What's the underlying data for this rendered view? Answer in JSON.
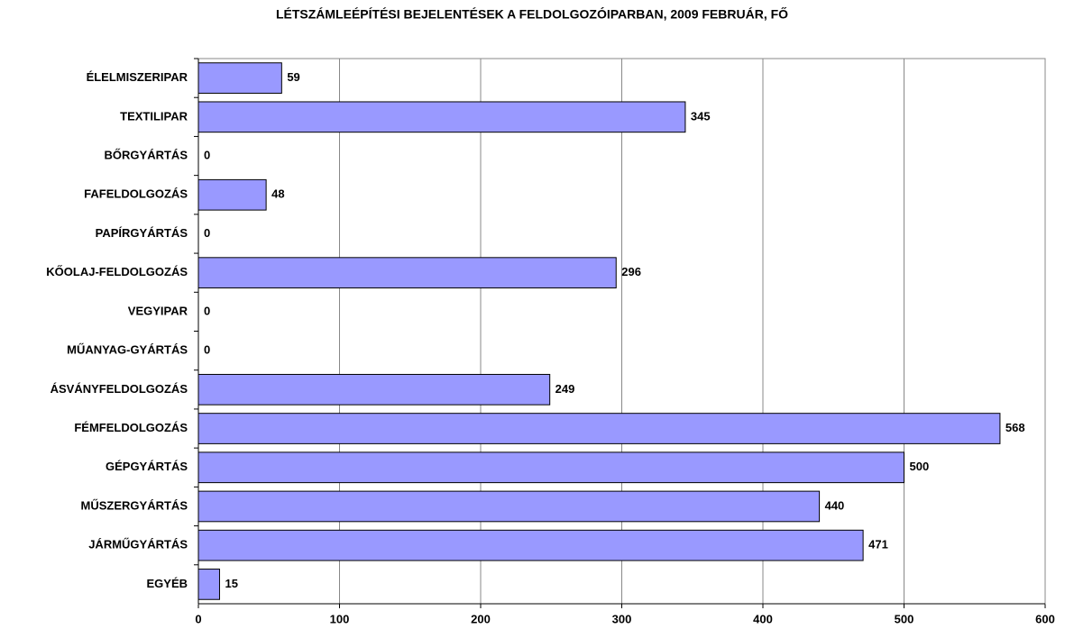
{
  "chart_data": {
    "type": "bar",
    "orientation": "horizontal",
    "title": "LÉTSZÁMLEÉPÍTÉSI BEJELENTÉSEK A FELDOLGOZÓIPARBAN, 2009 FEBRUÁR, FŐ",
    "categories": [
      "ÉLELMISZERIPAR",
      "TEXTILIPAR",
      "BŐRGYÁRTÁS",
      "FAFELDOLGOZÁS",
      "PAPÍRGYÁRTÁS",
      "KŐOLAJ-FELDOLGOZÁS",
      "VEGYIPAR",
      "MŰANYAG-GYÁRTÁS",
      "ÁSVÁNYFELDOLGOZÁS",
      "FÉMFELDOLGOZÁS",
      "GÉPGYÁRTÁS",
      "MŰSZERGYÁRTÁS",
      "JÁRMŰGYÁRTÁS",
      "EGYÉB"
    ],
    "values": [
      59,
      345,
      0,
      48,
      0,
      296,
      0,
      0,
      249,
      568,
      500,
      440,
      471,
      15
    ],
    "color": "#9999ff",
    "xlim": [
      0,
      600
    ],
    "xticks": [
      0,
      100,
      200,
      300,
      400,
      500,
      600
    ],
    "grid": true
  }
}
